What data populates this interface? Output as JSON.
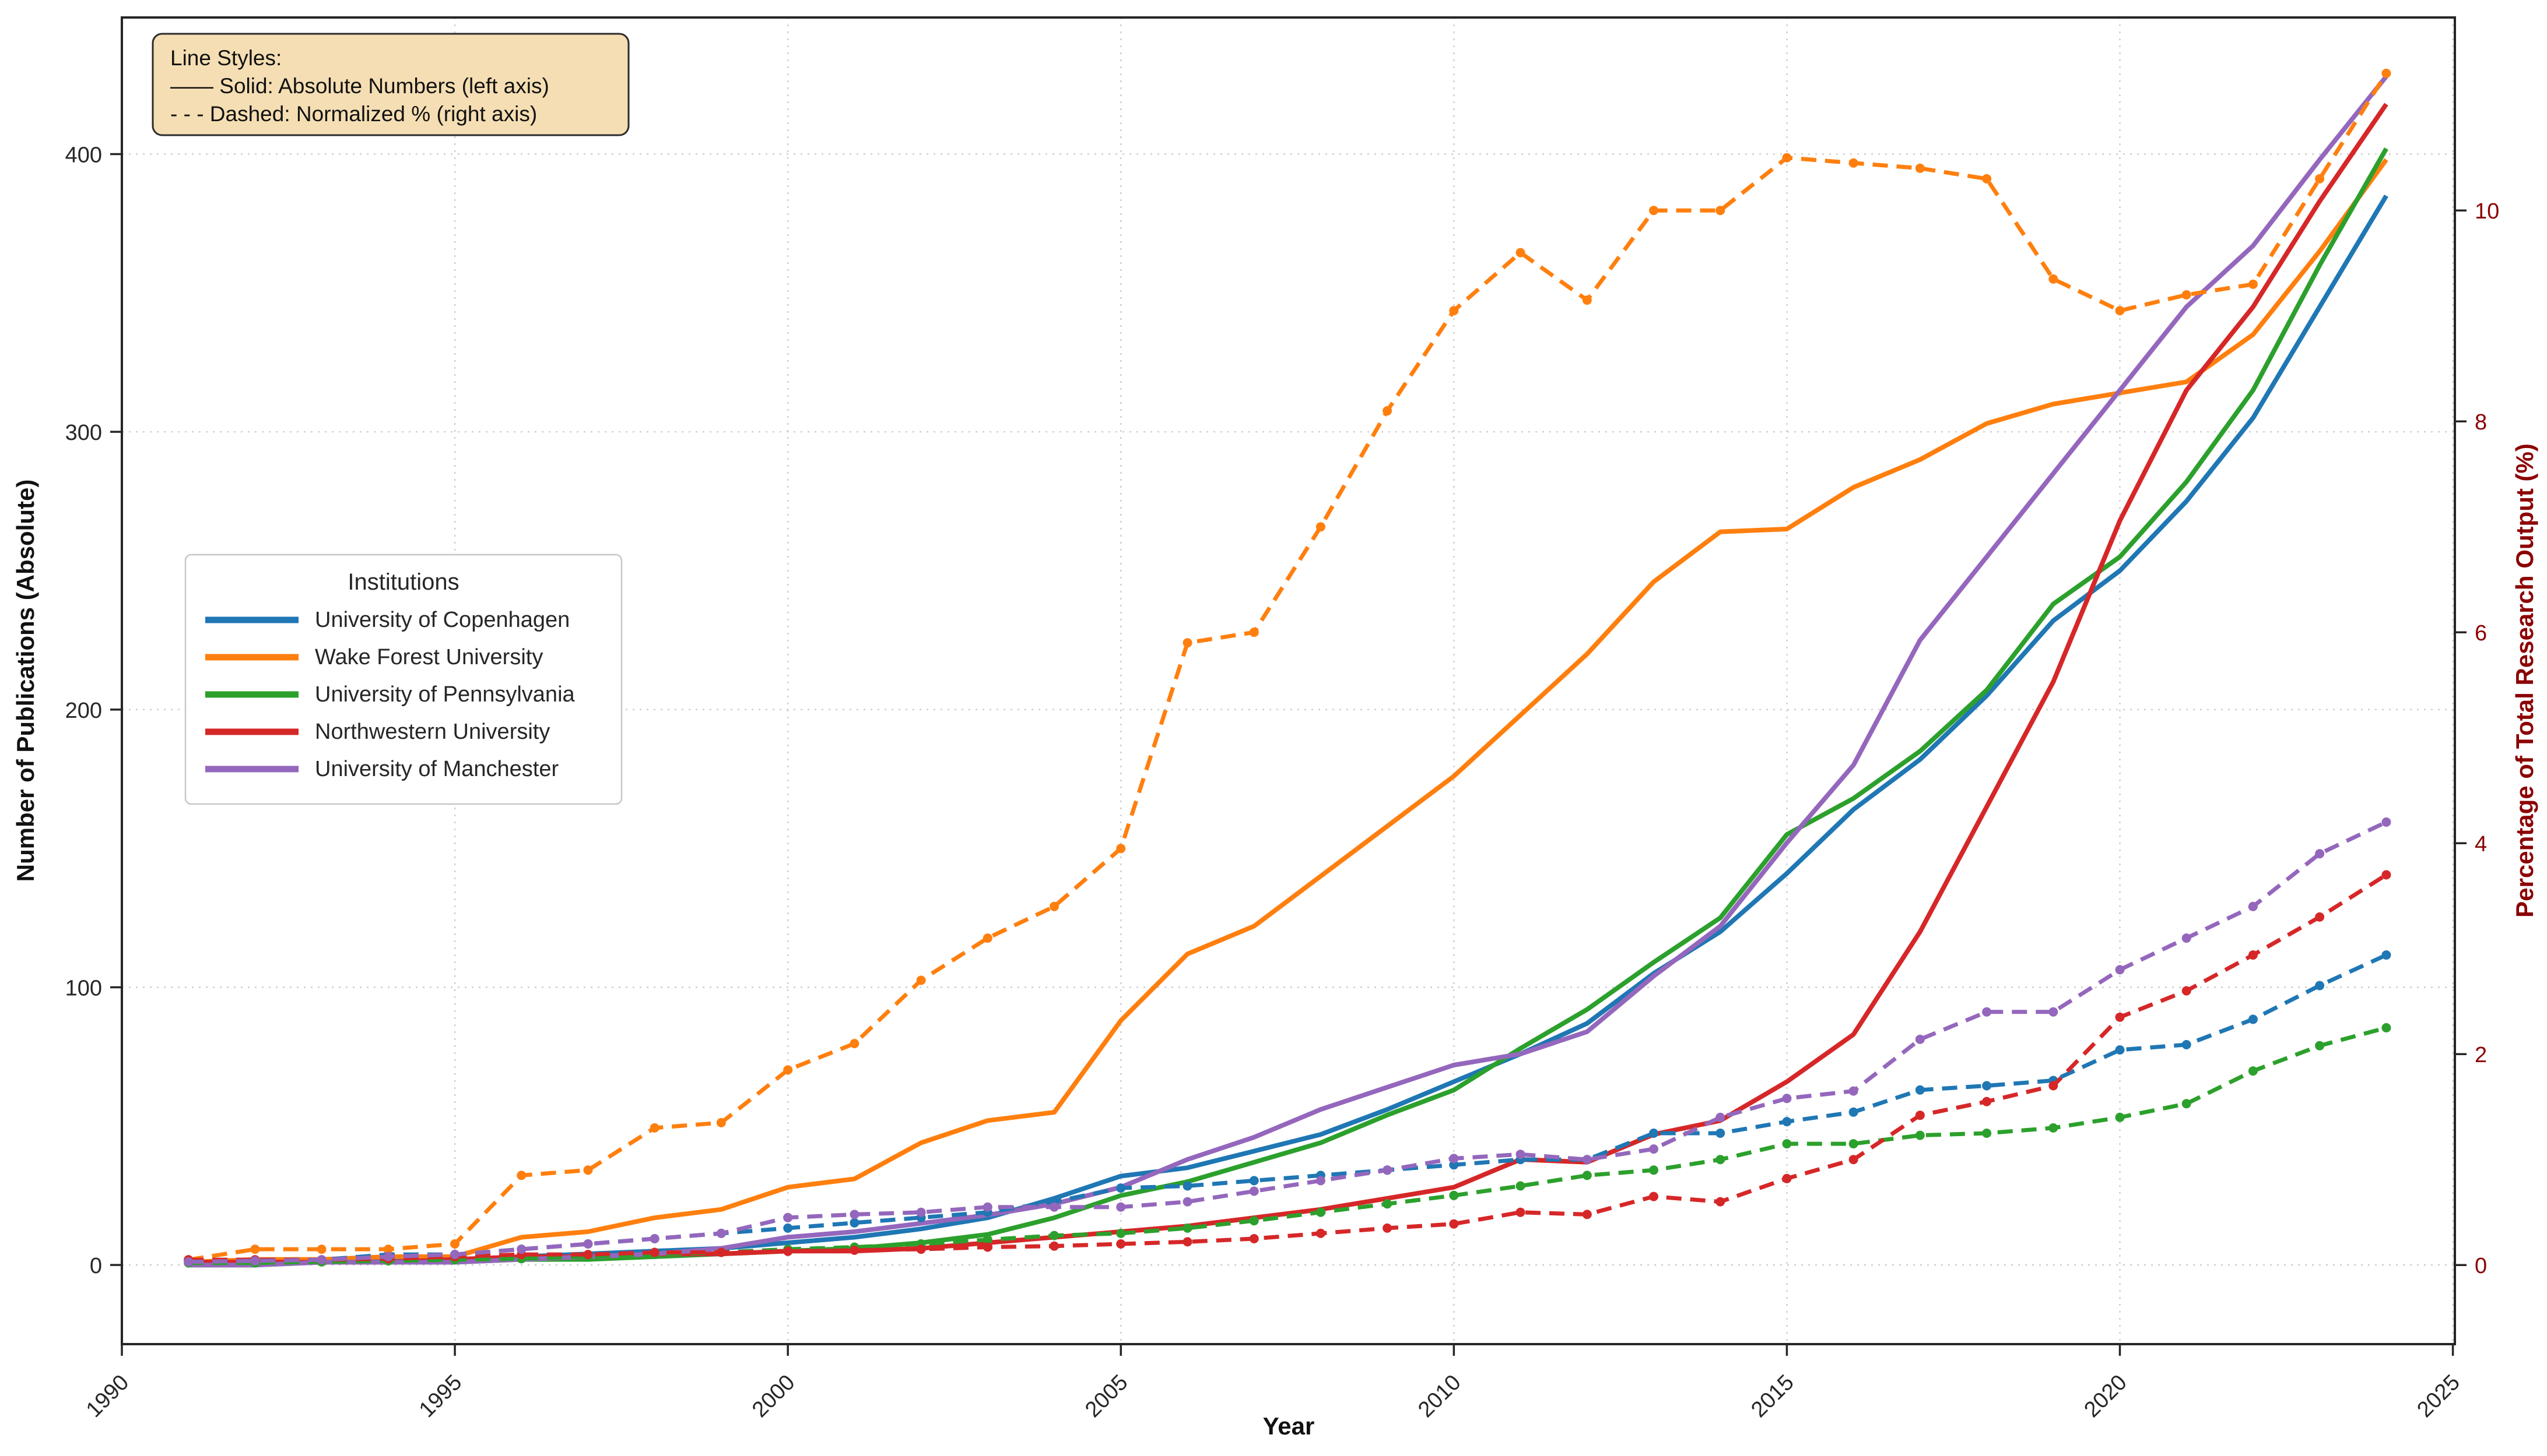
{
  "page": {
    "background": "#ffffff"
  },
  "annotation": {
    "bg": "#f5deb3",
    "border": "#2b2b2b",
    "lines": [
      "Line Styles:",
      "—— Solid: Absolute Numbers (left axis)",
      "- - - Dashed: Normalized % (right axis)"
    ]
  },
  "legend": {
    "title": "Institutions",
    "border": "#c7c7c7",
    "items": [
      {
        "label": "University of Copenhagen",
        "color": "#1f77b4"
      },
      {
        "label": "Wake Forest University",
        "color": "#ff7f0e"
      },
      {
        "label": "University of Pennsylvania",
        "color": "#2ca02c"
      },
      {
        "label": "Northwestern University",
        "color": "#d62728"
      },
      {
        "label": "University of Manchester",
        "color": "#9467bd"
      }
    ]
  },
  "chart_data": {
    "type": "line",
    "title": "",
    "xlabel": "Year",
    "ylabel_left": "Number of Publications (Absolute)",
    "ylabel_right": "Percentage of Total Research Output (%)",
    "axis_color": "#262626",
    "right_axis_color": "#8b0000",
    "grid": {
      "show": true,
      "color": "#c9c9c9"
    },
    "xlim": [
      1990,
      2025.03
    ],
    "ylim_left": [
      -28.5,
      449.2
    ],
    "ylim_right": [
      -0.75,
      11.83
    ],
    "x_ticks": [
      1990,
      1995,
      2000,
      2005,
      2010,
      2015,
      2020,
      2025
    ],
    "y_ticks_left": [
      0,
      100,
      200,
      300,
      400
    ],
    "y_ticks_right": [
      0,
      2,
      4,
      6,
      8,
      10
    ],
    "years": [
      1991,
      1992,
      1993,
      1994,
      1995,
      1996,
      1997,
      1998,
      1999,
      2000,
      2001,
      2002,
      2003,
      2004,
      2005,
      2006,
      2007,
      2008,
      2009,
      2010,
      2011,
      2012,
      2013,
      2014,
      2015,
      2016,
      2017,
      2018,
      2019,
      2020,
      2021,
      2022,
      2023,
      2024
    ],
    "series": [
      {
        "name": "University of Copenhagen",
        "kind": "absolute",
        "axis": "left",
        "style": "solid",
        "color": "#1f77b4",
        "values": [
          1,
          1,
          1,
          2,
          2,
          3,
          4,
          5,
          6,
          8,
          10,
          13,
          17,
          24,
          32,
          35,
          41,
          47,
          56,
          66,
          76,
          87,
          105,
          120,
          141,
          164,
          182,
          205,
          232,
          250,
          275,
          305,
          345,
          385
        ]
      },
      {
        "name": "Wake Forest University",
        "kind": "absolute",
        "axis": "left",
        "style": "solid",
        "color": "#ff7f0e",
        "values": [
          1,
          2,
          2,
          3,
          3,
          10,
          12,
          17,
          20,
          28,
          31,
          44,
          52,
          55,
          88,
          112,
          122,
          140,
          158,
          176,
          198,
          220,
          246,
          264,
          265,
          280,
          290,
          303,
          310,
          314,
          318,
          335,
          365,
          398
        ]
      },
      {
        "name": "University of Pennsylvania",
        "kind": "absolute",
        "axis": "left",
        "style": "solid",
        "color": "#2ca02c",
        "values": [
          0,
          0,
          1,
          1,
          1,
          2,
          2,
          3,
          4,
          5,
          6,
          8,
          11,
          17,
          25,
          30,
          37,
          44,
          54,
          63,
          78,
          92,
          109,
          125,
          155,
          168,
          185,
          207,
          238,
          255,
          282,
          315,
          360,
          402
        ]
      },
      {
        "name": "Northwestern University",
        "kind": "absolute",
        "axis": "left",
        "style": "solid",
        "color": "#d62728",
        "values": [
          1,
          1,
          1,
          1,
          2,
          3,
          3,
          4,
          4,
          5,
          5,
          6,
          8,
          10,
          12,
          14,
          17,
          20,
          24,
          28,
          38,
          37,
          47,
          52,
          66,
          83,
          120,
          165,
          210,
          268,
          315,
          345,
          383,
          418
        ]
      },
      {
        "name": "University of Manchester",
        "kind": "absolute",
        "axis": "left",
        "style": "solid",
        "color": "#9467bd",
        "values": [
          0,
          0,
          1,
          1,
          1,
          2,
          3,
          4,
          6,
          10,
          12,
          15,
          18,
          22,
          28,
          38,
          46,
          56,
          64,
          72,
          76,
          84,
          104,
          122,
          152,
          180,
          225,
          255,
          285,
          315,
          345,
          367,
          398,
          428
        ]
      },
      {
        "name": "University of Copenhagen",
        "kind": "normalized_pct",
        "axis": "right",
        "style": "dashed",
        "color": "#1f77b4",
        "values": [
          0.05,
          0.05,
          0.05,
          0.1,
          0.1,
          0.15,
          0.2,
          0.25,
          0.3,
          0.35,
          0.4,
          0.45,
          0.5,
          0.6,
          0.73,
          0.75,
          0.8,
          0.85,
          0.9,
          0.95,
          1.0,
          1.0,
          1.25,
          1.25,
          1.36,
          1.45,
          1.66,
          1.7,
          1.75,
          2.04,
          2.09,
          2.33,
          2.65,
          2.94
        ]
      },
      {
        "name": "Wake Forest University",
        "kind": "normalized_pct",
        "axis": "right",
        "style": "dashed",
        "color": "#ff7f0e",
        "values": [
          0.05,
          0.15,
          0.15,
          0.15,
          0.2,
          0.85,
          0.9,
          1.3,
          1.35,
          1.85,
          2.1,
          2.7,
          3.1,
          3.4,
          3.95,
          5.9,
          6.0,
          7.0,
          8.1,
          9.05,
          9.6,
          9.15,
          10.0,
          10.0,
          10.5,
          10.45,
          10.4,
          10.3,
          9.35,
          9.05,
          9.2,
          9.3,
          10.3,
          11.3
        ]
      },
      {
        "name": "University of Pennsylvania",
        "kind": "normalized_pct",
        "axis": "right",
        "style": "dashed",
        "color": "#2ca02c",
        "values": [
          0.02,
          0.02,
          0.03,
          0.04,
          0.05,
          0.06,
          0.08,
          0.1,
          0.12,
          0.15,
          0.17,
          0.2,
          0.24,
          0.28,
          0.3,
          0.35,
          0.42,
          0.5,
          0.58,
          0.66,
          0.75,
          0.85,
          0.9,
          1.0,
          1.15,
          1.15,
          1.23,
          1.25,
          1.3,
          1.4,
          1.53,
          1.84,
          2.08,
          2.25
        ]
      },
      {
        "name": "Northwestern University",
        "kind": "normalized_pct",
        "axis": "right",
        "style": "dashed",
        "color": "#d62728",
        "values": [
          0.05,
          0.05,
          0.05,
          0.06,
          0.08,
          0.1,
          0.1,
          0.12,
          0.12,
          0.13,
          0.14,
          0.15,
          0.17,
          0.18,
          0.2,
          0.22,
          0.25,
          0.3,
          0.35,
          0.39,
          0.5,
          0.48,
          0.65,
          0.6,
          0.82,
          1.0,
          1.42,
          1.55,
          1.7,
          2.35,
          2.6,
          2.94,
          3.3,
          3.7
        ]
      },
      {
        "name": "University of Manchester",
        "kind": "normalized_pct",
        "axis": "right",
        "style": "dashed",
        "color": "#9467bd",
        "values": [
          0.03,
          0.04,
          0.05,
          0.08,
          0.1,
          0.15,
          0.2,
          0.25,
          0.3,
          0.45,
          0.48,
          0.5,
          0.55,
          0.55,
          0.55,
          0.6,
          0.7,
          0.8,
          0.9,
          1.01,
          1.05,
          1.0,
          1.1,
          1.4,
          1.58,
          1.65,
          2.14,
          2.4,
          2.4,
          2.8,
          3.1,
          3.4,
          3.9,
          4.2
        ]
      }
    ]
  }
}
